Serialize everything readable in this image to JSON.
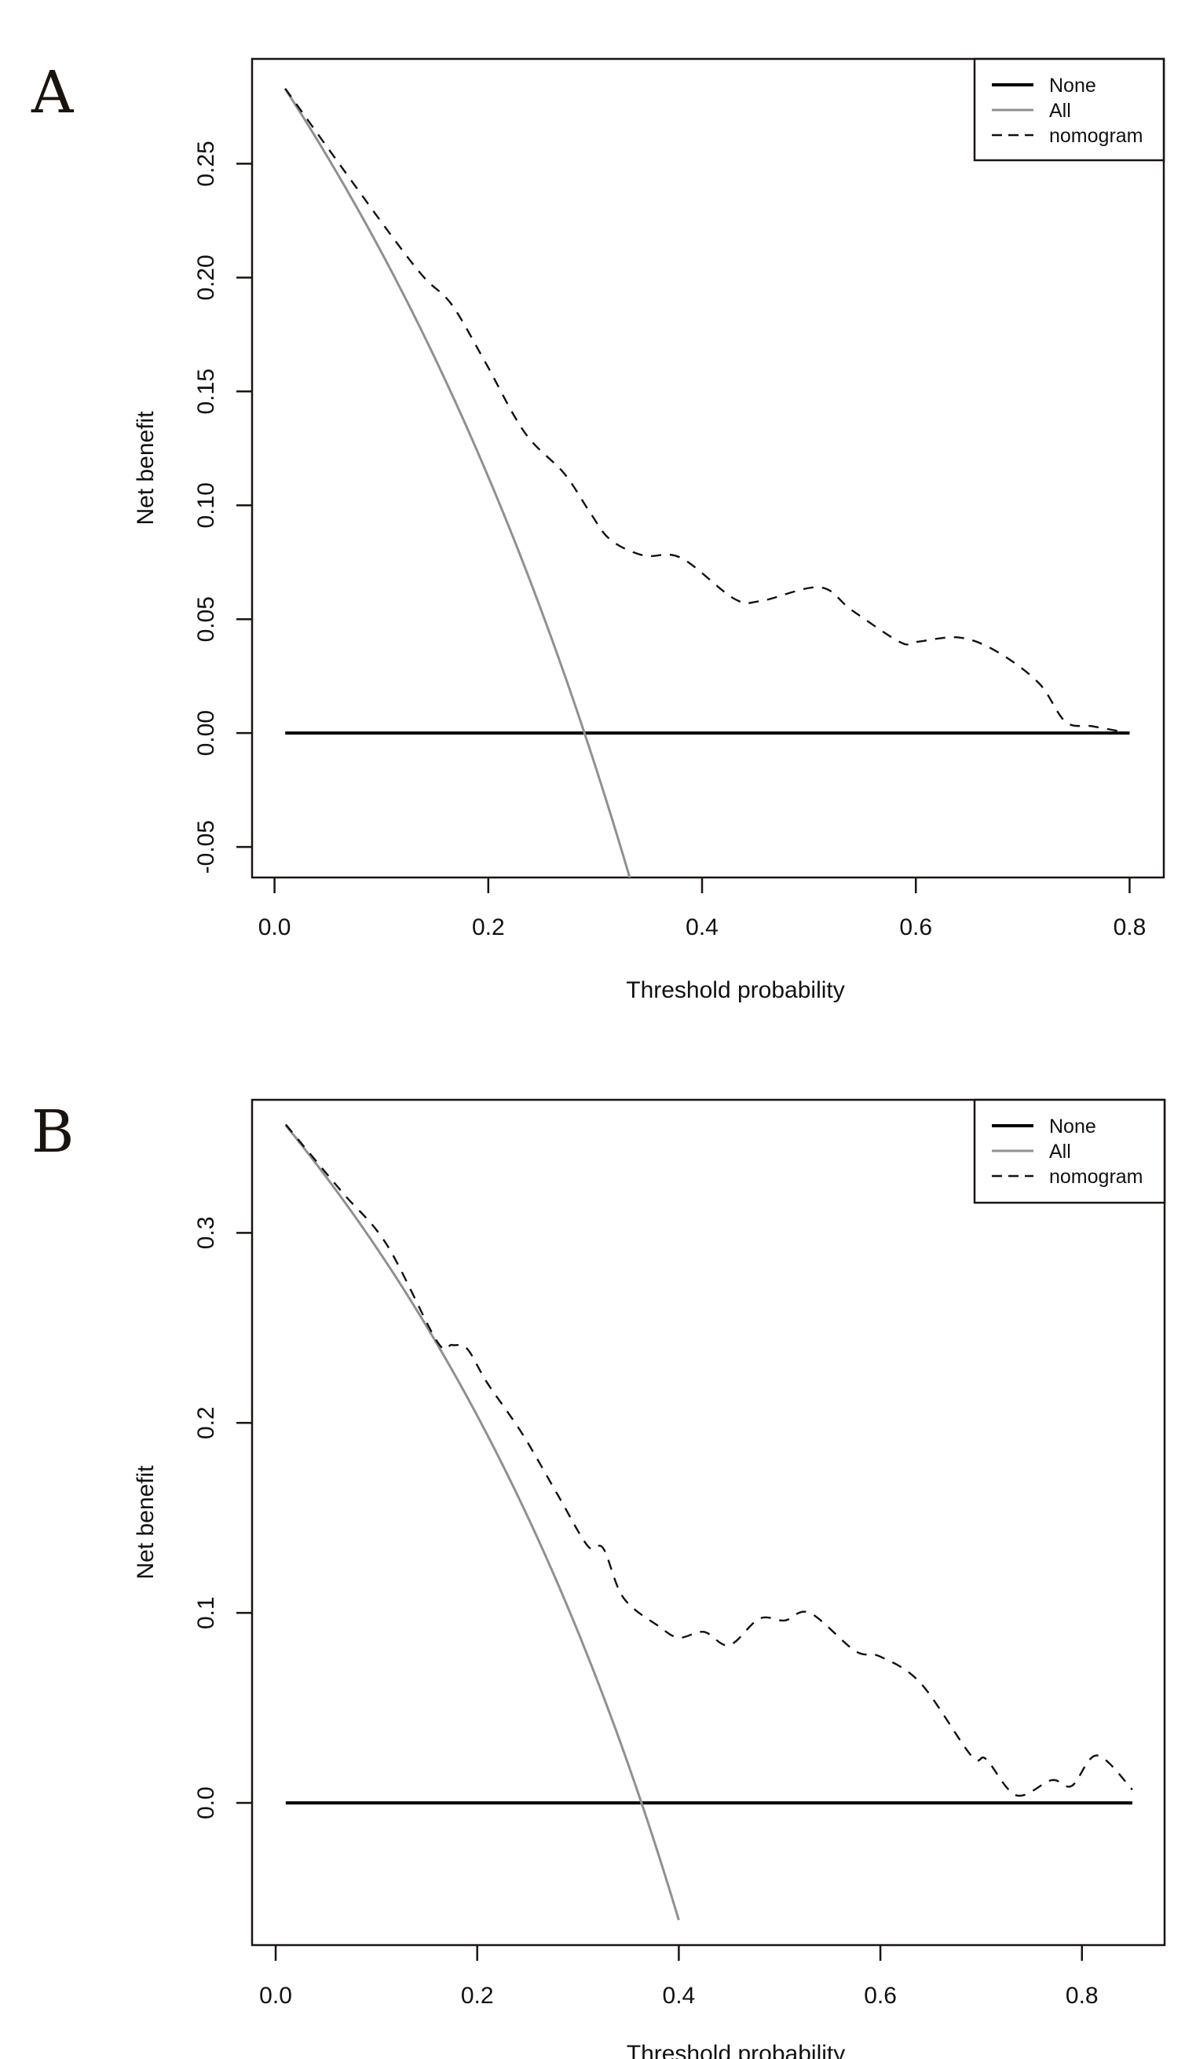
{
  "figure": {
    "panels": [
      "A",
      "B"
    ]
  },
  "chart_data": [
    {
      "panel_label": "A",
      "type": "line",
      "title": "",
      "xlabel": "Threshold probability",
      "ylabel": "Net benefit",
      "xlim": [
        -0.021,
        0.832
      ],
      "ylim": [
        -0.0634,
        0.296
      ],
      "xticks": [
        0.0,
        0.2,
        0.4,
        0.6,
        0.8
      ],
      "xtick_labels": [
        "0.0",
        "0.2",
        "0.4",
        "0.6",
        "0.8"
      ],
      "yticks": [
        -0.05,
        0.0,
        0.05,
        0.1,
        0.15,
        0.2,
        0.25
      ],
      "ytick_labels": [
        "-0.05",
        "0.00",
        "0.05",
        "0.10",
        "0.15",
        "0.20",
        "0.25"
      ],
      "grid": false,
      "legend": {
        "position": "top-right",
        "entries": [
          "None",
          "All",
          "nomogram"
        ]
      },
      "series": [
        {
          "name": "None",
          "style": "solid",
          "color": "#000000",
          "x": [
            0.01,
            0.8
          ],
          "y": [
            0.0,
            0.0
          ]
        },
        {
          "name": "All",
          "style": "solid",
          "color": "#909090",
          "prevalence": 0.29,
          "x_range": [
            0.01,
            0.335
          ],
          "formula": "p - (1 - p) * t / (1 - t)"
        },
        {
          "name": "nomogram",
          "style": "dashed",
          "color": "#111111",
          "x": [
            0.01,
            0.062,
            0.11,
            0.14,
            0.166,
            0.197,
            0.234,
            0.271,
            0.295,
            0.314,
            0.345,
            0.38,
            0.43,
            0.455,
            0.51,
            0.54,
            0.585,
            0.6,
            0.64,
            0.675,
            0.715,
            0.74,
            0.765,
            0.8
          ],
          "y": [
            0.283,
            0.249,
            0.218,
            0.2,
            0.188,
            0.163,
            0.132,
            0.114,
            0.097,
            0.085,
            0.078,
            0.077,
            0.059,
            0.058,
            0.064,
            0.054,
            0.04,
            0.04,
            0.042,
            0.036,
            0.022,
            0.005,
            0.003,
            0.0
          ]
        }
      ]
    },
    {
      "panel_label": "B",
      "type": "line",
      "title": "",
      "xlabel": "Threshold probability",
      "ylabel": "Net benefit",
      "xlim": [
        -0.0234,
        0.882
      ],
      "ylim": [
        -0.0748,
        0.37
      ],
      "xticks": [
        0.0,
        0.2,
        0.4,
        0.6,
        0.8
      ],
      "xtick_labels": [
        "0.0",
        "0.2",
        "0.4",
        "0.6",
        "0.8"
      ],
      "yticks": [
        0.0,
        0.1,
        0.2,
        0.3
      ],
      "ytick_labels": [
        "0.0",
        "0.1",
        "0.2",
        "0.3"
      ],
      "grid": false,
      "legend": {
        "position": "top-right",
        "entries": [
          "None",
          "All",
          "nomogram"
        ]
      },
      "series": [
        {
          "name": "None",
          "style": "solid",
          "color": "#000000",
          "x": [
            0.01,
            0.85
          ],
          "y": [
            0.0,
            0.0
          ]
        },
        {
          "name": "All",
          "style": "solid",
          "color": "#909090",
          "prevalence": 0.363,
          "x_range": [
            0.01,
            0.4
          ],
          "formula": "p - (1 - p) * t / (1 - t)"
        },
        {
          "name": "nomogram",
          "style": "dashed",
          "color": "#111111",
          "x": [
            0.01,
            0.065,
            0.11,
            0.16,
            0.175,
            0.19,
            0.21,
            0.245,
            0.28,
            0.31,
            0.325,
            0.345,
            0.38,
            0.4,
            0.425,
            0.45,
            0.48,
            0.505,
            0.53,
            0.575,
            0.6,
            0.64,
            0.69,
            0.705,
            0.735,
            0.77,
            0.79,
            0.815,
            0.85
          ],
          "y": [
            0.357,
            0.322,
            0.294,
            0.243,
            0.241,
            0.239,
            0.221,
            0.194,
            0.162,
            0.135,
            0.134,
            0.108,
            0.093,
            0.087,
            0.09,
            0.083,
            0.097,
            0.096,
            0.1,
            0.08,
            0.077,
            0.063,
            0.025,
            0.023,
            0.004,
            0.012,
            0.009,
            0.025,
            0.007
          ]
        }
      ]
    }
  ]
}
